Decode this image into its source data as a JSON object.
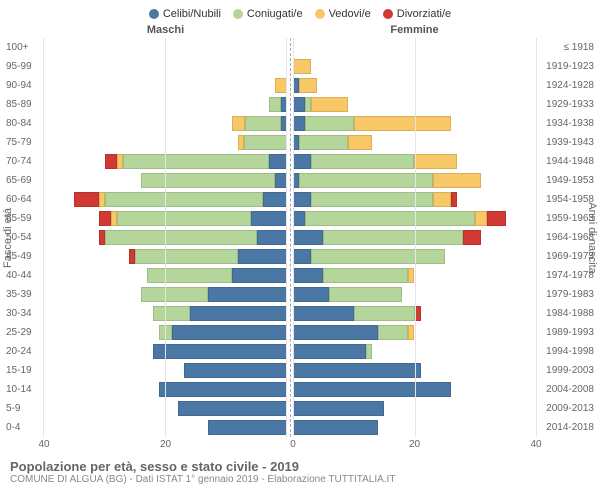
{
  "legend": [
    {
      "label": "Celibi/Nubili",
      "color": "#4a77a4"
    },
    {
      "label": "Coniugati/e",
      "color": "#b4d69a"
    },
    {
      "label": "Vedovi/e",
      "color": "#f8c867"
    },
    {
      "label": "Divorziati/e",
      "color": "#d03a32"
    }
  ],
  "axis_left_title": "Fasce di età",
  "axis_right_title": "Anni di nascita",
  "header_male": "Maschi",
  "header_female": "Femmine",
  "title": "Popolazione per età, sesso e stato civile - 2019",
  "subtitle": "COMUNE DI ALGUA (BG) - Dati ISTAT 1° gennaio 2019 - Elaborazione TUTTITALIA.IT",
  "xmax": 40,
  "xticks": [
    40,
    20,
    0,
    20,
    40
  ],
  "colors": {
    "celibi": "#4a77a4",
    "coniugati": "#b4d69a",
    "vedovi": "#f8c867",
    "divorziati": "#d03a32",
    "grid": "#e5e5e5",
    "center_line": "#aaaaaa",
    "background": "#ffffff"
  },
  "rows": [
    {
      "age": "100+",
      "birth": "≤ 1918",
      "m": {
        "c": 0,
        "g": 0,
        "v": 0,
        "d": 0
      },
      "f": {
        "c": 0,
        "g": 0,
        "v": 0,
        "d": 0
      }
    },
    {
      "age": "95-99",
      "birth": "1919-1923",
      "m": {
        "c": 0,
        "g": 0,
        "v": 0,
        "d": 0
      },
      "f": {
        "c": 0,
        "g": 0,
        "v": 3,
        "d": 0
      }
    },
    {
      "age": "90-94",
      "birth": "1924-1928",
      "m": {
        "c": 0,
        "g": 0,
        "v": 2,
        "d": 0
      },
      "f": {
        "c": 1,
        "g": 0,
        "v": 3,
        "d": 0
      }
    },
    {
      "age": "85-89",
      "birth": "1929-1933",
      "m": {
        "c": 1,
        "g": 2,
        "v": 0,
        "d": 0
      },
      "f": {
        "c": 2,
        "g": 1,
        "v": 6,
        "d": 0
      }
    },
    {
      "age": "80-84",
      "birth": "1934-1938",
      "m": {
        "c": 1,
        "g": 6,
        "v": 2,
        "d": 0
      },
      "f": {
        "c": 2,
        "g": 8,
        "v": 16,
        "d": 0
      }
    },
    {
      "age": "75-79",
      "birth": "1939-1943",
      "m": {
        "c": 0,
        "g": 7,
        "v": 1,
        "d": 0
      },
      "f": {
        "c": 1,
        "g": 8,
        "v": 4,
        "d": 0
      }
    },
    {
      "age": "70-74",
      "birth": "1944-1948",
      "m": {
        "c": 3,
        "g": 24,
        "v": 1,
        "d": 2
      },
      "f": {
        "c": 3,
        "g": 17,
        "v": 7,
        "d": 0
      }
    },
    {
      "age": "65-69",
      "birth": "1949-1953",
      "m": {
        "c": 2,
        "g": 22,
        "v": 0,
        "d": 0
      },
      "f": {
        "c": 1,
        "g": 22,
        "v": 8,
        "d": 0
      }
    },
    {
      "age": "60-64",
      "birth": "1954-1958",
      "m": {
        "c": 4,
        "g": 26,
        "v": 1,
        "d": 4
      },
      "f": {
        "c": 3,
        "g": 20,
        "v": 3,
        "d": 1
      }
    },
    {
      "age": "55-59",
      "birth": "1959-1963",
      "m": {
        "c": 6,
        "g": 22,
        "v": 1,
        "d": 2
      },
      "f": {
        "c": 2,
        "g": 28,
        "v": 2,
        "d": 3
      }
    },
    {
      "age": "50-54",
      "birth": "1964-1968",
      "m": {
        "c": 5,
        "g": 25,
        "v": 0,
        "d": 1
      },
      "f": {
        "c": 5,
        "g": 23,
        "v": 0,
        "d": 3
      }
    },
    {
      "age": "45-49",
      "birth": "1969-1973",
      "m": {
        "c": 8,
        "g": 17,
        "v": 0,
        "d": 1
      },
      "f": {
        "c": 3,
        "g": 22,
        "v": 0,
        "d": 0
      }
    },
    {
      "age": "40-44",
      "birth": "1974-1978",
      "m": {
        "c": 9,
        "g": 14,
        "v": 0,
        "d": 0
      },
      "f": {
        "c": 5,
        "g": 14,
        "v": 1,
        "d": 0
      }
    },
    {
      "age": "35-39",
      "birth": "1979-1983",
      "m": {
        "c": 13,
        "g": 11,
        "v": 0,
        "d": 0
      },
      "f": {
        "c": 6,
        "g": 12,
        "v": 0,
        "d": 0
      }
    },
    {
      "age": "30-34",
      "birth": "1984-1988",
      "m": {
        "c": 16,
        "g": 6,
        "v": 0,
        "d": 0
      },
      "f": {
        "c": 10,
        "g": 10,
        "v": 0,
        "d": 1
      }
    },
    {
      "age": "25-29",
      "birth": "1989-1993",
      "m": {
        "c": 19,
        "g": 2,
        "v": 0,
        "d": 0
      },
      "f": {
        "c": 14,
        "g": 5,
        "v": 1,
        "d": 0
      }
    },
    {
      "age": "20-24",
      "birth": "1994-1998",
      "m": {
        "c": 22,
        "g": 0,
        "v": 0,
        "d": 0
      },
      "f": {
        "c": 12,
        "g": 1,
        "v": 0,
        "d": 0
      }
    },
    {
      "age": "15-19",
      "birth": "1999-2003",
      "m": {
        "c": 17,
        "g": 0,
        "v": 0,
        "d": 0
      },
      "f": {
        "c": 21,
        "g": 0,
        "v": 0,
        "d": 0
      }
    },
    {
      "age": "10-14",
      "birth": "2004-2008",
      "m": {
        "c": 21,
        "g": 0,
        "v": 0,
        "d": 0
      },
      "f": {
        "c": 26,
        "g": 0,
        "v": 0,
        "d": 0
      }
    },
    {
      "age": "5-9",
      "birth": "2009-2013",
      "m": {
        "c": 18,
        "g": 0,
        "v": 0,
        "d": 0
      },
      "f": {
        "c": 15,
        "g": 0,
        "v": 0,
        "d": 0
      }
    },
    {
      "age": "0-4",
      "birth": "2014-2018",
      "m": {
        "c": 13,
        "g": 0,
        "v": 0,
        "d": 0
      },
      "f": {
        "c": 14,
        "g": 0,
        "v": 0,
        "d": 0
      }
    }
  ]
}
